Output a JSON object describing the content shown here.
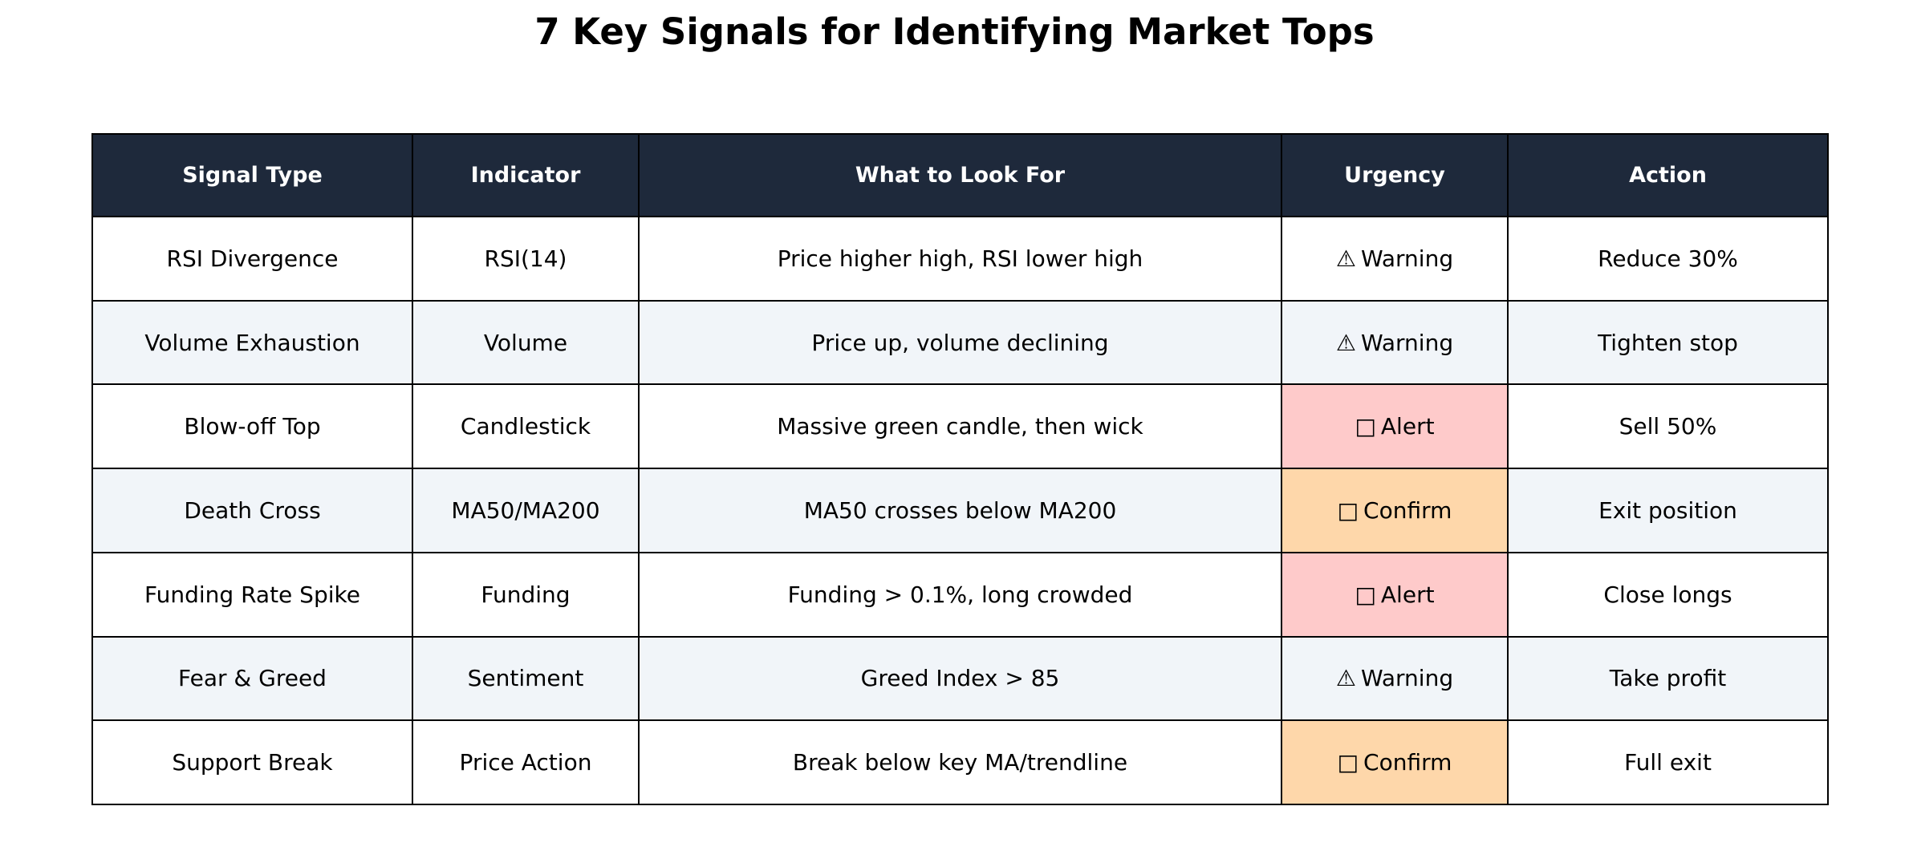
{
  "chart_data": {
    "type": "table",
    "title": "7 Key Signals for Identifying Market Tops",
    "columns": [
      "Signal Type",
      "Indicator",
      "What to Look For",
      "Urgency",
      "Action"
    ],
    "rows": [
      {
        "signal": "RSI Divergence",
        "indicator": "RSI(14)",
        "look_for": "Price higher high, RSI lower high",
        "urgency_icon": "⚠",
        "urgency": "Warning",
        "urgency_color": "",
        "action": "Reduce 30%"
      },
      {
        "signal": "Volume Exhaustion",
        "indicator": "Volume",
        "look_for": "Price up, volume declining",
        "urgency_icon": "⚠",
        "urgency": "Warning",
        "urgency_color": "",
        "action": "Tighten stop"
      },
      {
        "signal": "Blow-off Top",
        "indicator": "Candlestick",
        "look_for": "Massive green candle, then wick",
        "urgency_icon": "□",
        "urgency": "Alert",
        "urgency_color": "#fecaca",
        "action": "Sell 50%"
      },
      {
        "signal": "Death Cross",
        "indicator": "MA50/MA200",
        "look_for": "MA50 crosses below MA200",
        "urgency_icon": "□",
        "urgency": "Confirm",
        "urgency_color": "#fed7aa",
        "action": "Exit position"
      },
      {
        "signal": "Funding Rate Spike",
        "indicator": "Funding",
        "look_for": "Funding > 0.1%, long crowded",
        "urgency_icon": "□",
        "urgency": "Alert",
        "urgency_color": "#fecaca",
        "action": "Close longs"
      },
      {
        "signal": "Fear & Greed",
        "indicator": "Sentiment",
        "look_for": "Greed Index > 85",
        "urgency_icon": "⚠",
        "urgency": "Warning",
        "urgency_color": "",
        "action": "Take profit"
      },
      {
        "signal": "Support Break",
        "indicator": "Price Action",
        "look_for": "Break below key MA/trendline",
        "urgency_icon": "□",
        "urgency": "Confirm",
        "urgency_color": "#fed7aa",
        "action": "Full exit"
      }
    ]
  },
  "colors": {
    "header_bg": "#1e293b",
    "header_text": "#ffffff",
    "row_odd_bg": "#ffffff",
    "row_even_bg": "#f1f5f9",
    "alert_bg": "#fecaca",
    "confirm_bg": "#fed7aa",
    "border": "#000000"
  }
}
